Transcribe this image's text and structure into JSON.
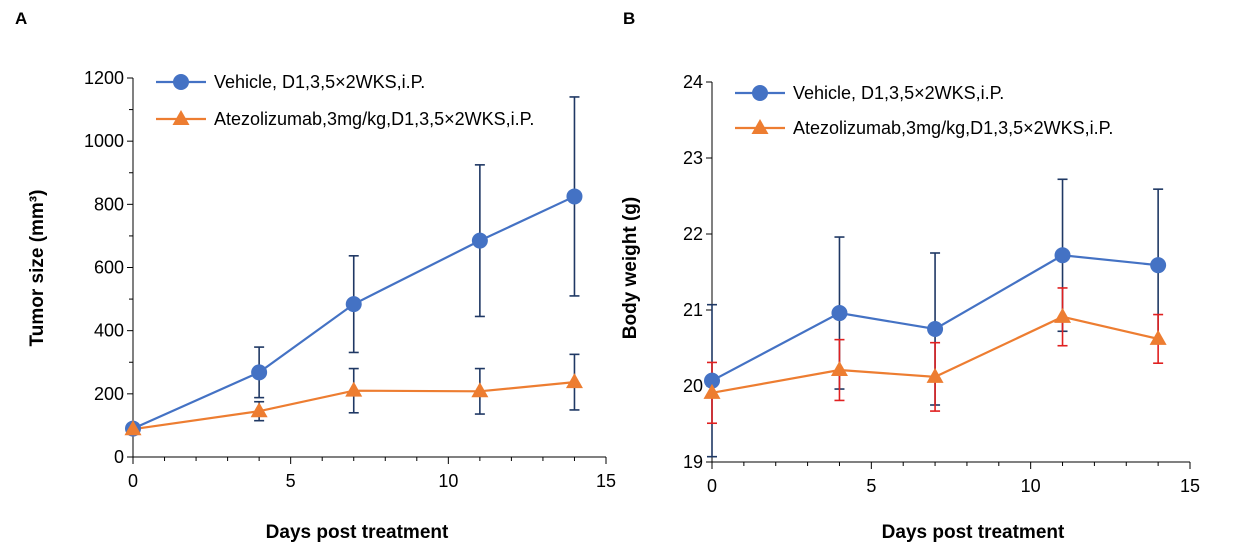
{
  "chart_data": [
    {
      "panel": "A",
      "type": "line",
      "xlabel": "Days post treatment",
      "ylabel": "Tumor size (mm³)",
      "xlim": [
        0,
        15
      ],
      "ylim": [
        0,
        1200
      ],
      "xticks": [
        0,
        5,
        10,
        15
      ],
      "yticks": [
        0,
        200,
        400,
        600,
        800,
        1000,
        1200
      ],
      "legend_position": "top-left",
      "grid": false,
      "series": [
        {
          "name": "Vehicle, D1,3,5×2WKS,i.P.",
          "color": "#4472c4",
          "marker": "circle",
          "errorbar_color": "#1f3864",
          "x": [
            0,
            4,
            7,
            11,
            14
          ],
          "y": [
            90,
            268,
            484,
            685,
            825
          ],
          "err": [
            0,
            80,
            153,
            240,
            315
          ]
        },
        {
          "name": "Atezolizumab,3mg/kg,D1,3,5×2WKS,i.P.",
          "color": "#ed7d31",
          "marker": "triangle",
          "errorbar_color": "#1f3864",
          "x": [
            0,
            4,
            7,
            11,
            14
          ],
          "y": [
            88,
            145,
            210,
            208,
            237
          ],
          "err": [
            0,
            30,
            70,
            72,
            88
          ]
        }
      ]
    },
    {
      "panel": "B",
      "type": "line",
      "xlabel": "Days post treatment",
      "ylabel": "Body weight (g)",
      "xlim": [
        0,
        15
      ],
      "ylim": [
        19,
        24
      ],
      "xticks": [
        0,
        5,
        10,
        15
      ],
      "yticks": [
        19,
        20,
        21,
        22,
        23,
        24
      ],
      "legend_position": "top-left",
      "grid": false,
      "series": [
        {
          "name": "Vehicle, D1,3,5×2WKS,i.P.",
          "color": "#4472c4",
          "marker": "circle",
          "errorbar_color": "#1f3864",
          "x": [
            0,
            4,
            7,
            11,
            14
          ],
          "y": [
            20.07,
            20.96,
            20.75,
            21.72,
            21.59
          ],
          "err": [
            1.0,
            1.0,
            1.0,
            1.0,
            1.0
          ]
        },
        {
          "name": "Atezolizumab,3mg/kg,D1,3,5×2WKS,i.P.",
          "color": "#ed7d31",
          "marker": "triangle",
          "errorbar_color": "#e02020",
          "x": [
            0,
            4,
            7,
            11,
            14
          ],
          "y": [
            19.91,
            20.21,
            20.12,
            20.91,
            20.62
          ],
          "err": [
            0.4,
            0.4,
            0.45,
            0.38,
            0.32
          ]
        }
      ]
    }
  ]
}
